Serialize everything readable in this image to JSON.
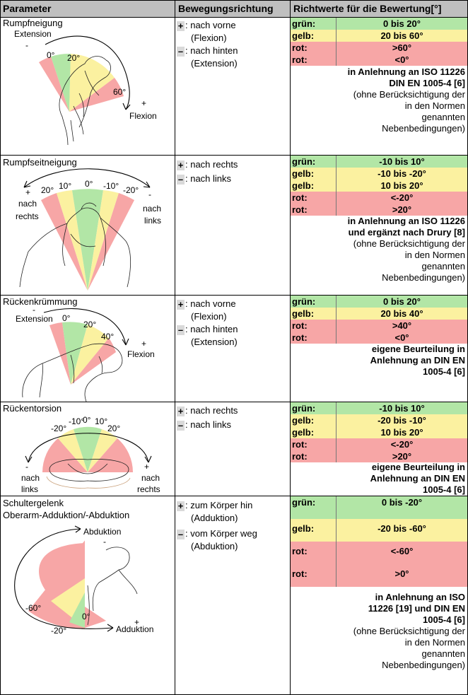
{
  "header": {
    "col1": "Parameter",
    "col2": "Bewegungsrichtung",
    "col3": "Richtwerte für die Bewertung[°]"
  },
  "rows": [
    {
      "title_lines": [
        "Rumpfneigung"
      ],
      "figure": {
        "labels": [
          "Extension",
          "-",
          "0°",
          "20°",
          "60°",
          "+",
          "Flexion"
        ]
      },
      "directions": [
        {
          "sign": "+",
          "text": ": nach vorne",
          "sub": "(Flexion)"
        },
        {
          "sign": "–",
          "text": ": nach hinten",
          "sub": "(Extension)"
        }
      ],
      "values": [
        {
          "label": "grün:",
          "value": "0 bis 20°",
          "color": "#b2e6a6"
        },
        {
          "label": "gelb:",
          "value": "20 bis 60°",
          "color": "#fbf1a0"
        },
        {
          "label": "rot:",
          "value": ">60°",
          "color": "#f7a6a6"
        },
        {
          "label": "rot:",
          "value": "<0°",
          "color": "#f7a6a6"
        }
      ],
      "note_bold": [
        "in Anlehnung an ISO 11226",
        "DIN EN 1005-4 [6]"
      ],
      "note_normal": [
        "(ohne Berücksichtigung der",
        "in den Normen",
        "genannten",
        "Nebenbedingungen)"
      ]
    },
    {
      "title_lines": [
        "Rumpfseitneigung"
      ],
      "figure": {
        "labels": [
          "+",
          "20°",
          "10°",
          "0°",
          "-10°",
          "-20°",
          "-",
          "nach",
          "rechts",
          "nach",
          "links"
        ]
      },
      "directions": [
        {
          "sign": "+",
          "text": ": nach rechts",
          "sub": ""
        },
        {
          "sign": "–",
          "text": ": nach links",
          "sub": ""
        }
      ],
      "values": [
        {
          "label": "grün:",
          "value": "-10 bis 10°",
          "color": "#b2e6a6"
        },
        {
          "label": "gelb:",
          "value": "-10 bis -20°",
          "color": "#fbf1a0"
        },
        {
          "label": "gelb:",
          "value": "10 bis 20°",
          "color": "#fbf1a0"
        },
        {
          "label": "rot:",
          "value": "<-20°",
          "color": "#f7a6a6"
        },
        {
          "label": "rot:",
          "value": ">20°",
          "color": "#f7a6a6"
        }
      ],
      "note_bold": [
        "in Anlehnung an ISO 11226",
        "und ergänzt nach Drury [8]"
      ],
      "note_normal": [
        "(ohne Berücksichtigung der",
        "in den Normen",
        "genannten",
        "Nebenbedingungen)"
      ]
    },
    {
      "title_lines": [
        "Rückenkrümmung"
      ],
      "figure": {
        "labels": [
          "-",
          "Extension",
          "0°",
          "20°",
          "40°",
          "+",
          "Flexion"
        ]
      },
      "directions": [
        {
          "sign": "+",
          "text": ": nach vorne",
          "sub": "(Flexion)"
        },
        {
          "sign": "–",
          "text": ": nach hinten",
          "sub": "(Extension)"
        }
      ],
      "values": [
        {
          "label": "grün:",
          "value": "0 bis 20°",
          "color": "#b2e6a6"
        },
        {
          "label": "gelb:",
          "value": "20 bis 40°",
          "color": "#fbf1a0"
        },
        {
          "label": "rot:",
          "value": ">40°",
          "color": "#f7a6a6"
        },
        {
          "label": "rot:",
          "value": "<0°",
          "color": "#f7a6a6"
        }
      ],
      "note_bold": [
        "eigene Beurteilung in",
        "Anlehnung an DIN EN",
        "1005-4 [6]"
      ],
      "note_normal": []
    },
    {
      "title_lines": [
        "Rückentorsion"
      ],
      "figure": {
        "labels": [
          "-20°",
          "-10°",
          "0°",
          "10°",
          "20°",
          "-",
          "nach",
          "links",
          "+",
          "nach",
          "rechts"
        ]
      },
      "directions": [
        {
          "sign": "+",
          "text": ": nach rechts",
          "sub": ""
        },
        {
          "sign": "–",
          "text": ": nach links",
          "sub": ""
        }
      ],
      "values": [
        {
          "label": "grün:",
          "value": "-10 bis 10°",
          "color": "#b2e6a6"
        },
        {
          "label": "gelb:",
          "value": "-20 bis -10°",
          "color": "#fbf1a0"
        },
        {
          "label": "gelb:",
          "value": "10 bis 20°",
          "color": "#fbf1a0"
        },
        {
          "label": "rot:",
          "value": "<-20°",
          "color": "#f7a6a6"
        },
        {
          "label": "rot:",
          "value": ">20°",
          "color": "#f7a6a6"
        }
      ],
      "note_bold": [
        "eigene Beurteilung in",
        "Anlehnung an DIN EN",
        "1005-4 [6]"
      ],
      "note_normal": []
    },
    {
      "title_lines": [
        "Schultergelenk",
        "Oberarm-Adduktion/-Abduktion"
      ],
      "figure": {
        "labels": [
          "Abduktion",
          "-",
          "-60°",
          "-20°",
          "0°",
          "Adduktion",
          "+"
        ]
      },
      "directions": [
        {
          "sign": "+",
          "text": ": zum Körper hin",
          "sub": "(Adduktion)"
        },
        {
          "sign": "–",
          "text": ": vom Körper weg",
          "sub": "(Abduktion)"
        }
      ],
      "values": [
        {
          "label": "grün:",
          "value": "0 bis -20°",
          "color": "#b2e6a6"
        },
        {
          "label": "gelb:",
          "value": "-20 bis -60°",
          "color": "#fbf1a0"
        },
        {
          "label": "rot:",
          "value": "<-60°",
          "color": "#f7a6a6"
        },
        {
          "label": "rot:",
          "value": ">0°",
          "color": "#f7a6a6"
        }
      ],
      "note_bold": [
        "in Anlehnung an ISO",
        "11226 [19] und DIN EN",
        "1005-4 [6]"
      ],
      "note_normal": [
        "(ohne Berücksichtigung der",
        "in den Normen",
        "genannten",
        "Nebenbedingungen)"
      ]
    }
  ]
}
